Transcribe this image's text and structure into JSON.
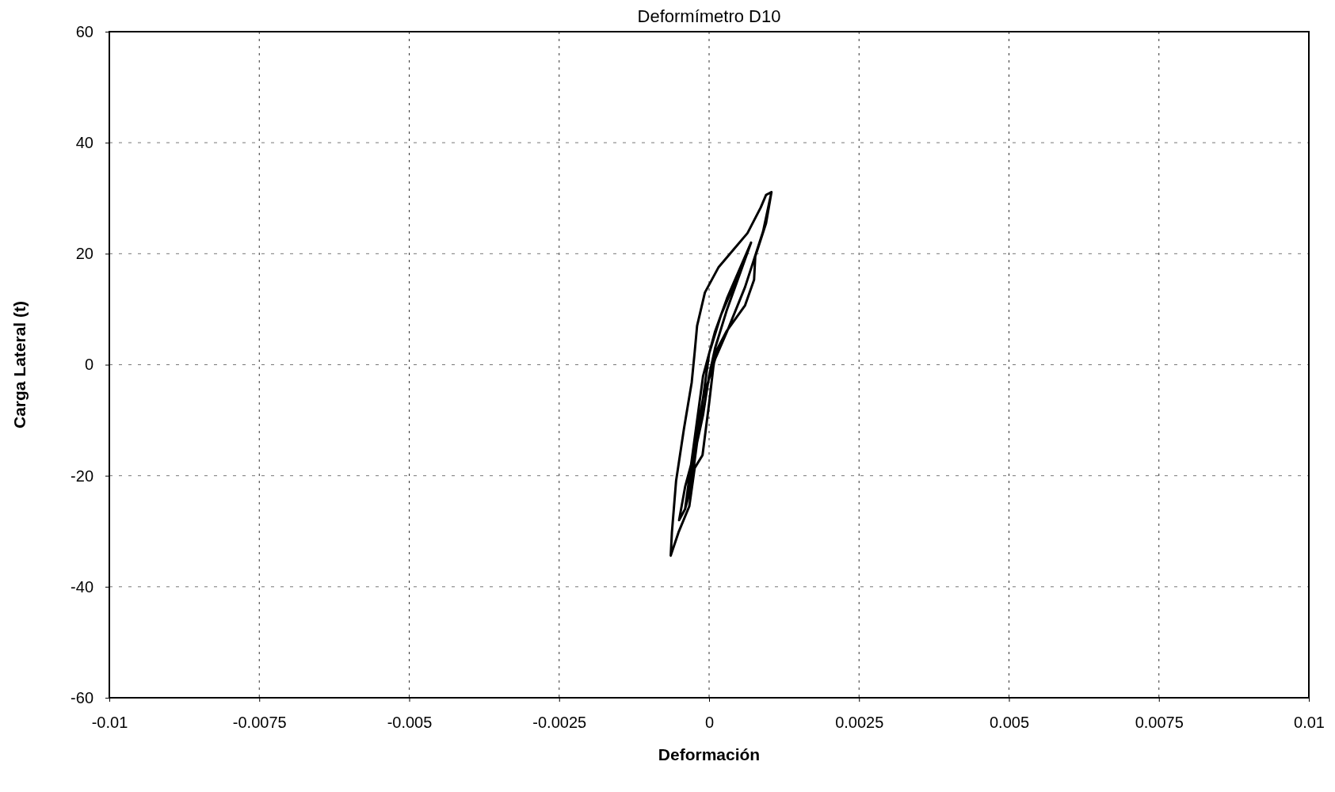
{
  "chart_data": {
    "type": "line",
    "title": "Deformímetro D10",
    "xlabel": "Deformación",
    "ylabel": "Carga Lateral (t)",
    "xlim": [
      -0.01,
      0.01
    ],
    "xticks": [
      -0.01,
      -0.0075,
      -0.005,
      -0.0025,
      0,
      0.0025,
      0.005,
      0.0075,
      0.01
    ],
    "ylim": [
      -60,
      60
    ],
    "yticks": [
      -60,
      -40,
      -20,
      0,
      20,
      40,
      60
    ],
    "grid": true,
    "marker": "none",
    "line_style": "solid",
    "series": [
      {
        "color": "#000000",
        "x": [
          0.00104,
          0.00095,
          0.00077,
          0.00075,
          0.0006,
          0.00029,
          0.00011,
          7e-05,
          0,
          -0.00011,
          -0.00024,
          -0.00033,
          -0.00051,
          -0.00064,
          -0.00062,
          -0.00055,
          -0.00042,
          -0.00029,
          -0.00024,
          -0.0002,
          -7e-05,
          0.00016,
          0.00042,
          0.00064,
          0.00086,
          0.00095,
          0.00104,
          0.0009,
          0.0006,
          0.0003,
          0.0001,
          -0.0001,
          -0.0002,
          -0.0003,
          -0.0004,
          -0.0005,
          -0.0004,
          -0.0003,
          -0.0002,
          -0.0001,
          0.0001,
          0.0003,
          0.0005,
          0.0007,
          0.0005,
          0.0003,
          0.0001,
          0,
          -0.0001,
          -0.0002,
          -0.0003,
          -0.0004,
          -0.0003,
          -0.0002,
          -0.0001,
          0,
          0.0002,
          0.0004,
          0.0006
        ],
        "values": [
          31.1,
          25.5,
          19.5,
          15.3,
          10.7,
          6.0,
          2.3,
          -0.5,
          -7.0,
          -16.3,
          -18.6,
          -25.5,
          -30.2,
          -34.4,
          -30.2,
          -20.9,
          -11.6,
          -3.2,
          2.3,
          7.0,
          13.0,
          17.6,
          20.9,
          23.7,
          28.3,
          30.6,
          31.1,
          24.0,
          14.0,
          6.0,
          1.0,
          -6.0,
          -12.0,
          -18.0,
          -22.0,
          -28.0,
          -26.0,
          -18.0,
          -10.0,
          -2.0,
          6.0,
          12.0,
          17.0,
          22.0,
          16.0,
          10.0,
          3.0,
          -2.0,
          -9.0,
          -14.0,
          -20.0,
          -26.0,
          -22.0,
          -14.0,
          -6.0,
          2.0,
          9.0,
          14.0,
          19.0
        ]
      }
    ]
  }
}
